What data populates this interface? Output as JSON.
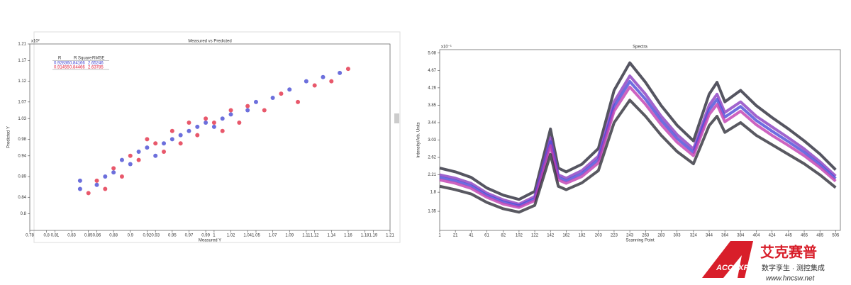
{
  "chart_data": [
    {
      "type": "scatter",
      "title": "Measured vs Predicted",
      "xlabel": "Measured Y",
      "ylabel": "Predicted Y",
      "multiplier": "x10²",
      "xlim": [
        0.78,
        1.21
      ],
      "ylim": [
        0.76,
        1.21
      ],
      "xticks": [
        0.78,
        0.8,
        0.81,
        0.83,
        0.85,
        0.86,
        0.88,
        0.9,
        0.92,
        0.93,
        0.95,
        0.97,
        0.99,
        1.0,
        1.02,
        1.04,
        1.05,
        1.07,
        1.09,
        1.11,
        1.12,
        1.14,
        1.16,
        1.18,
        1.19,
        1.21
      ],
      "yticks": [
        0.8,
        0.84,
        0.89,
        0.94,
        0.98,
        1.03,
        1.07,
        1.12,
        1.17,
        1.21
      ],
      "stats": {
        "headers": [
          "R",
          "R Square",
          "RMSE"
        ],
        "rows": [
          [
            0.92836,
            0.84166,
            2.65246
          ],
          [
            0.91455,
            0.84466,
            2.63785
          ]
        ]
      },
      "series": [
        {
          "color": "#3b3fd0",
          "x": [
            0.84,
            0.84,
            0.86,
            0.87,
            0.88,
            0.89,
            0.9,
            0.91,
            0.92,
            0.93,
            0.94,
            0.95,
            0.96,
            0.97,
            0.98,
            0.99,
            1.0,
            1.01,
            1.02,
            1.04,
            1.05,
            1.07,
            1.09,
            1.11,
            1.13,
            1.15
          ],
          "y": [
            0.86,
            0.88,
            0.87,
            0.89,
            0.9,
            0.93,
            0.92,
            0.95,
            0.96,
            0.94,
            0.97,
            0.98,
            0.99,
            1.0,
            1.01,
            1.02,
            1.01,
            1.03,
            1.04,
            1.05,
            1.07,
            1.08,
            1.1,
            1.12,
            1.13,
            1.14
          ]
        },
        {
          "color": "#e0203a",
          "x": [
            0.85,
            0.86,
            0.87,
            0.88,
            0.89,
            0.9,
            0.91,
            0.92,
            0.93,
            0.94,
            0.95,
            0.96,
            0.97,
            0.98,
            0.99,
            1.0,
            1.01,
            1.02,
            1.03,
            1.04,
            1.06,
            1.08,
            1.1,
            1.12,
            1.14,
            1.16
          ],
          "y": [
            0.85,
            0.88,
            0.86,
            0.91,
            0.89,
            0.94,
            0.93,
            0.98,
            0.97,
            0.95,
            1.0,
            0.97,
            1.02,
            0.99,
            1.03,
            1.02,
            1.0,
            1.05,
            1.02,
            1.06,
            1.05,
            1.09,
            1.07,
            1.11,
            1.12,
            1.15
          ]
        }
      ]
    },
    {
      "type": "line",
      "title": "Spectra",
      "xlabel": "Scanning Point",
      "ylabel": "Intensity/Arb. Units",
      "multiplier": "x10⁻¹",
      "xlim": [
        1,
        511
      ],
      "ylim": [
        0.9,
        5.16
      ],
      "xticks": [
        1,
        21,
        41,
        61,
        82,
        102,
        122,
        142,
        162,
        182,
        203,
        223,
        243,
        263,
        283,
        303,
        324,
        344,
        364,
        384,
        404,
        424,
        445,
        465,
        485,
        505
      ],
      "yticks": [
        1.35,
        1.8,
        2.21,
        2.62,
        3.03,
        3.44,
        3.85,
        4.26,
        4.67,
        5.08
      ],
      "x": [
        1,
        21,
        41,
        61,
        82,
        102,
        122,
        142,
        152,
        162,
        182,
        203,
        223,
        243,
        263,
        283,
        303,
        324,
        344,
        354,
        364,
        384,
        404,
        424,
        445,
        465,
        485,
        505
      ],
      "series": [
        {
          "color": "#2a2a3a",
          "values": [
            2.37,
            2.28,
            2.15,
            1.9,
            1.73,
            1.63,
            1.82,
            3.29,
            2.37,
            2.28,
            2.46,
            2.83,
            4.2,
            4.85,
            4.39,
            3.84,
            3.38,
            3.01,
            4.11,
            4.39,
            3.93,
            4.2,
            3.84,
            3.56,
            3.29,
            3.01,
            2.7,
            2.33
          ]
        },
        {
          "color": "#8a3cc0",
          "values": [
            2.21,
            2.13,
            2.01,
            1.78,
            1.62,
            1.52,
            1.7,
            3.08,
            2.21,
            2.13,
            2.31,
            2.65,
            3.93,
            4.54,
            4.11,
            3.59,
            3.16,
            2.82,
            3.85,
            4.11,
            3.68,
            3.93,
            3.59,
            3.34,
            3.08,
            2.82,
            2.52,
            2.18
          ]
        },
        {
          "color": "#4a4ad8",
          "values": [
            2.15,
            2.07,
            1.95,
            1.73,
            1.57,
            1.48,
            1.65,
            2.99,
            2.15,
            2.07,
            2.24,
            2.57,
            3.82,
            4.41,
            3.99,
            3.49,
            3.07,
            2.74,
            3.74,
            3.99,
            3.57,
            3.82,
            3.49,
            3.24,
            2.99,
            2.74,
            2.45,
            2.12
          ]
        },
        {
          "color": "#c03cb0",
          "values": [
            2.09,
            2.01,
            1.89,
            1.68,
            1.52,
            1.44,
            1.6,
            2.9,
            2.09,
            2.01,
            2.17,
            2.49,
            3.71,
            4.28,
            3.87,
            3.39,
            2.98,
            2.66,
            3.63,
            3.87,
            3.46,
            3.71,
            3.39,
            3.14,
            2.9,
            2.66,
            2.38,
            2.06
          ]
        },
        {
          "color": "#30303a",
          "values": [
            1.94,
            1.86,
            1.76,
            1.56,
            1.41,
            1.33,
            1.49,
            2.69,
            1.94,
            1.86,
            2.02,
            2.31,
            3.44,
            3.97,
            3.59,
            3.14,
            2.76,
            2.47,
            3.37,
            3.59,
            3.21,
            3.44,
            3.14,
            2.92,
            2.69,
            2.47,
            2.21,
            1.91
          ]
        }
      ]
    }
  ],
  "logo": {
    "brand": "艾克赛普",
    "mark": "ACCEXP",
    "tagline": "数字孪生 · 测控集成",
    "url": "www.hncsw.net"
  }
}
